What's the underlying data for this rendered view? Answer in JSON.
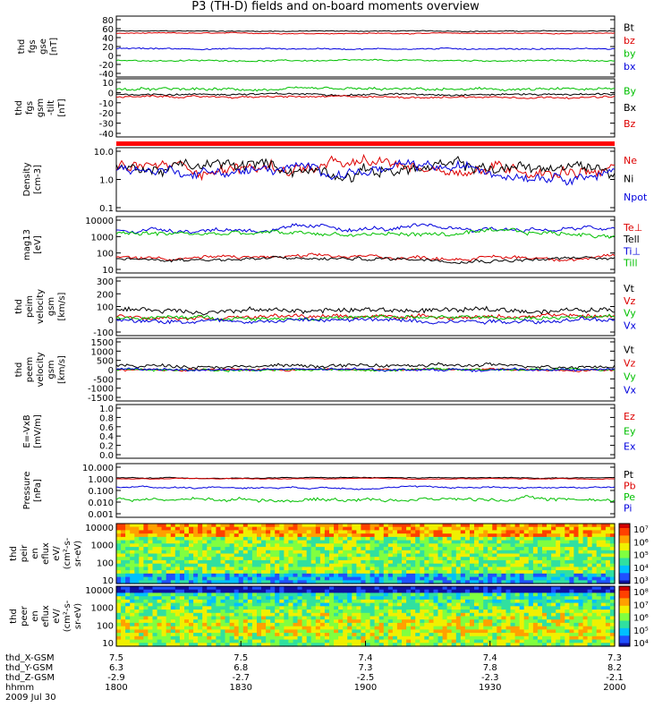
{
  "title": "P3 (TH-D) fields and on-board moments overview",
  "chart_data": [
    {
      "type": "line",
      "ylabel": [
        "thd",
        "fgs",
        "gse",
        "[nT]"
      ],
      "yticks": [
        "80",
        "60",
        "40",
        "20",
        "0",
        "-20",
        "-40"
      ],
      "ylim": [
        -45,
        85
      ],
      "series": [
        {
          "name": "Bt",
          "color": "#000000",
          "level": 55,
          "noise": 2
        },
        {
          "name": "bz",
          "color": "#dd0000",
          "level": 50,
          "noise": 2
        },
        {
          "name": "by",
          "color": "#00c000",
          "level": -12,
          "noise": 3
        },
        {
          "name": "bx",
          "color": "#0000dd",
          "level": 15,
          "noise": 3
        }
      ]
    },
    {
      "type": "line",
      "ylabel": [
        "thd",
        "fgs",
        "gsm",
        "-tilt",
        "[nT]"
      ],
      "yticks": [
        "10",
        "0",
        "-10",
        "-20",
        "-30",
        "-40"
      ],
      "ylim": [
        -45,
        15
      ],
      "series": [
        {
          "name": "By",
          "color": "#00c000",
          "level": 5,
          "noise": 3
        },
        {
          "name": "Bx",
          "color": "#000000",
          "level": 0,
          "noise": 2
        },
        {
          "name": "Bz",
          "color": "#dd0000",
          "level": -3,
          "noise": 2
        }
      ]
    },
    {
      "type": "line",
      "ylabel": [
        "Density",
        "[cm-3]"
      ],
      "yticks": [
        "10.0",
        "1.0",
        "0.1"
      ],
      "ylog": true,
      "ylim": [
        0.1,
        10
      ],
      "series": [
        {
          "name": "Ne",
          "color": "#dd0000",
          "level": 2.5,
          "noise": 0.6
        },
        {
          "name": "Ni",
          "color": "#000000",
          "level": 2.3,
          "noise": 0.6
        },
        {
          "name": "Npot",
          "color": "#0000dd",
          "level": 2.0,
          "noise": 0.5
        }
      ]
    },
    {
      "type": "line",
      "ylabel": [
        "mag13",
        "[eV]"
      ],
      "yticks": [
        "10000",
        "1000",
        "100",
        "10"
      ],
      "ylog": true,
      "ylim": [
        10,
        10000
      ],
      "series": [
        {
          "name": "Te⊥",
          "color": "#dd0000",
          "level": 60,
          "noise": 0.3
        },
        {
          "name": "Tell",
          "color": "#000000",
          "level": 50,
          "noise": 0.3
        },
        {
          "name": "Ti⊥",
          "color": "#0000dd",
          "level": 2500,
          "noise": 0.4
        },
        {
          "name": "Till",
          "color": "#00c000",
          "level": 1300,
          "noise": 0.4
        }
      ]
    },
    {
      "type": "line",
      "ylabel": [
        "thd",
        "peim",
        "velocity",
        "gsm",
        "[km/s]"
      ],
      "yticks": [
        "300",
        "200",
        "100",
        "0",
        "-100"
      ],
      "ylim": [
        -130,
        310
      ],
      "series": [
        {
          "name": "Vt",
          "color": "#000000",
          "level": 60,
          "noise": 40
        },
        {
          "name": "Vz",
          "color": "#dd0000",
          "level": 10,
          "noise": 30
        },
        {
          "name": "Vy",
          "color": "#00c000",
          "level": 0,
          "noise": 30
        },
        {
          "name": "Vx",
          "color": "#0000dd",
          "level": -20,
          "noise": 35
        }
      ]
    },
    {
      "type": "line",
      "ylabel": [
        "thd",
        "peem",
        "velocity",
        "gsm",
        "[km/s]"
      ],
      "yticks": [
        "1500",
        "1000",
        "500",
        "0",
        "-500",
        "-1000",
        "-1500"
      ],
      "ylim": [
        -1550,
        1550
      ],
      "series": [
        {
          "name": "Vt",
          "color": "#000000",
          "level": 200,
          "noise": 180
        },
        {
          "name": "Vz",
          "color": "#dd0000",
          "level": 0,
          "noise": 120
        },
        {
          "name": "Vy",
          "color": "#00c000",
          "level": 0,
          "noise": 120
        },
        {
          "name": "Vx",
          "color": "#0000dd",
          "level": 0,
          "noise": 120
        }
      ]
    },
    {
      "type": "line",
      "ylabel": [
        "E=-VxB",
        "[mV/m]"
      ],
      "yticks": [
        "1.0",
        "0.8",
        "0.6",
        "0.4",
        "0.2",
        "0.0"
      ],
      "ylim": [
        0,
        1
      ],
      "series": [
        {
          "name": "Ez",
          "color": "#dd0000",
          "level": null,
          "noise": 0
        },
        {
          "name": "Ey",
          "color": "#00c000",
          "level": null,
          "noise": 0
        },
        {
          "name": "Ex",
          "color": "#0000dd",
          "level": null,
          "noise": 0
        }
      ]
    },
    {
      "type": "line",
      "ylabel": [
        "Pressure",
        "[nPa]"
      ],
      "yticks": [
        "10.000",
        "1.000",
        "0.100",
        "0.010",
        "0.001"
      ],
      "ylog": true,
      "ylim": [
        0.001,
        10
      ],
      "series": [
        {
          "name": "Pt",
          "color": "#000000",
          "level": 1.0,
          "noise": 0.1
        },
        {
          "name": "Pb",
          "color": "#dd0000",
          "level": 0.85,
          "noise": 0.08
        },
        {
          "name": "Pe",
          "color": "#00c000",
          "level": 0.02,
          "noise": 0.4
        },
        {
          "name": "Pi",
          "color": "#0000dd",
          "level": 0.18,
          "noise": 0.2
        }
      ]
    },
    {
      "type": "heatmap",
      "ylabel": [
        "thd",
        "peir",
        "en",
        "eflux",
        "eV/",
        "(cm²-s-",
        "sr-eV)"
      ],
      "yticks": [
        "10000",
        "1000",
        "100",
        "10"
      ],
      "colorbar": [
        "10⁷",
        "10⁶",
        "10⁵",
        "10⁴",
        "10³"
      ]
    },
    {
      "type": "heatmap",
      "ylabel": [
        "thd",
        "peer",
        "en",
        "eflux",
        "eV/",
        "(cm²-s-",
        "sr-eV)"
      ],
      "yticks": [
        "10000",
        "1000",
        "100",
        "10"
      ],
      "colorbar": [
        "10⁸",
        "10⁷",
        "10⁶",
        "10⁵",
        "10⁴"
      ]
    }
  ],
  "x_axis": {
    "row_labels": [
      "thd_X-GSM",
      "thd_Y-GSM",
      "thd_Z-GSM",
      "hhmm"
    ],
    "date": "2009 Jul 30",
    "ticks": [
      {
        "x": "7.5",
        "y": "6.3",
        "z": "-2.9",
        "t": "1800"
      },
      {
        "x": "7.5",
        "y": "6.8",
        "z": "-2.7",
        "t": "1830"
      },
      {
        "x": "7.4",
        "y": "7.3",
        "z": "-2.5",
        "t": "1900"
      },
      {
        "x": "7.4",
        "y": "7.8",
        "z": "-2.3",
        "t": "1930"
      },
      {
        "x": "7.3",
        "y": "8.2",
        "z": "-2.1",
        "t": "2000"
      }
    ]
  }
}
